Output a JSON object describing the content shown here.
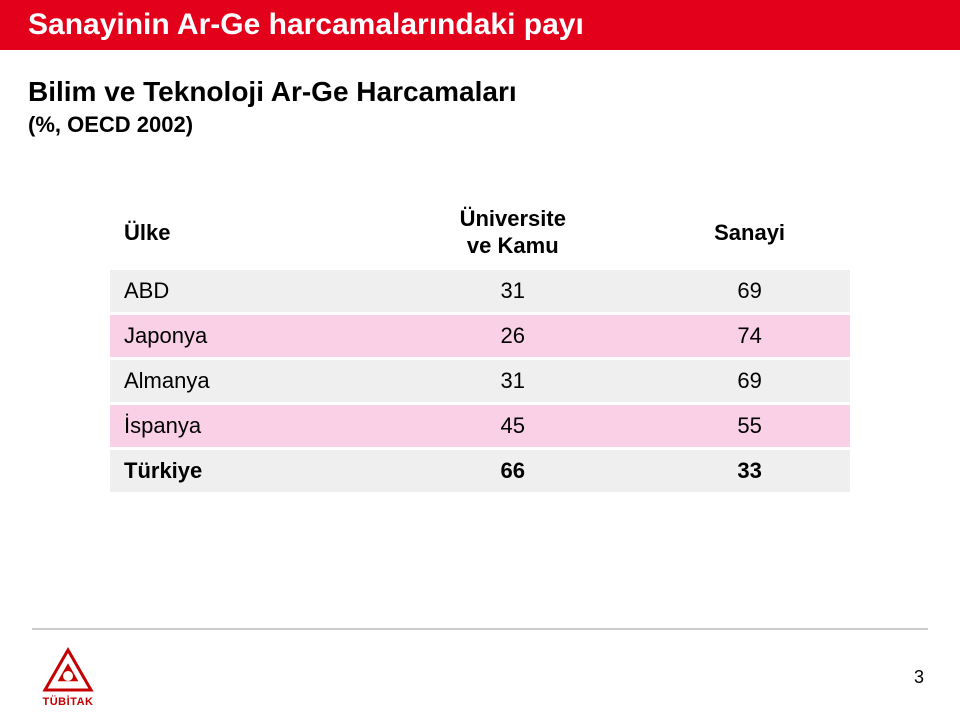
{
  "header": {
    "title": "Sanayinin Ar-Ge harcamalarındaki payı",
    "bg_color": "#e2001a",
    "text_color": "#ffffff"
  },
  "subheader": {
    "line1": "Bilim ve Teknoloji Ar-Ge Harcamaları",
    "line2": "(%, OECD 2002)",
    "text_color": "#000000"
  },
  "table": {
    "columns": [
      {
        "label": "Ülke",
        "align": "left"
      },
      {
        "label_line1": "Üniversite",
        "label_line2": "ve Kamu",
        "align": "center"
      },
      {
        "label": "Sanayi",
        "align": "center"
      }
    ],
    "rows": [
      {
        "country": "ABD",
        "univ_public": 31,
        "industry": 69,
        "bg": "#efefef",
        "bold": false
      },
      {
        "country": "Japonya",
        "univ_public": 26,
        "industry": 74,
        "bg": "#f9d0e6",
        "bold": false
      },
      {
        "country": "Almanya",
        "univ_public": 31,
        "industry": 69,
        "bg": "#efefef",
        "bold": false
      },
      {
        "country": "İspanya",
        "univ_public": 45,
        "industry": 55,
        "bg": "#f9d0e6",
        "bold": false
      },
      {
        "country": "Türkiye",
        "univ_public": 66,
        "industry": 33,
        "bg": "#efefef",
        "bold": true
      }
    ],
    "header_fontsize": 22,
    "cell_fontsize": 22
  },
  "footer": {
    "logo_text": "TÜBİTAK",
    "logo_color": "#c40000",
    "page_number": "3",
    "line_color": "#cccccc"
  }
}
